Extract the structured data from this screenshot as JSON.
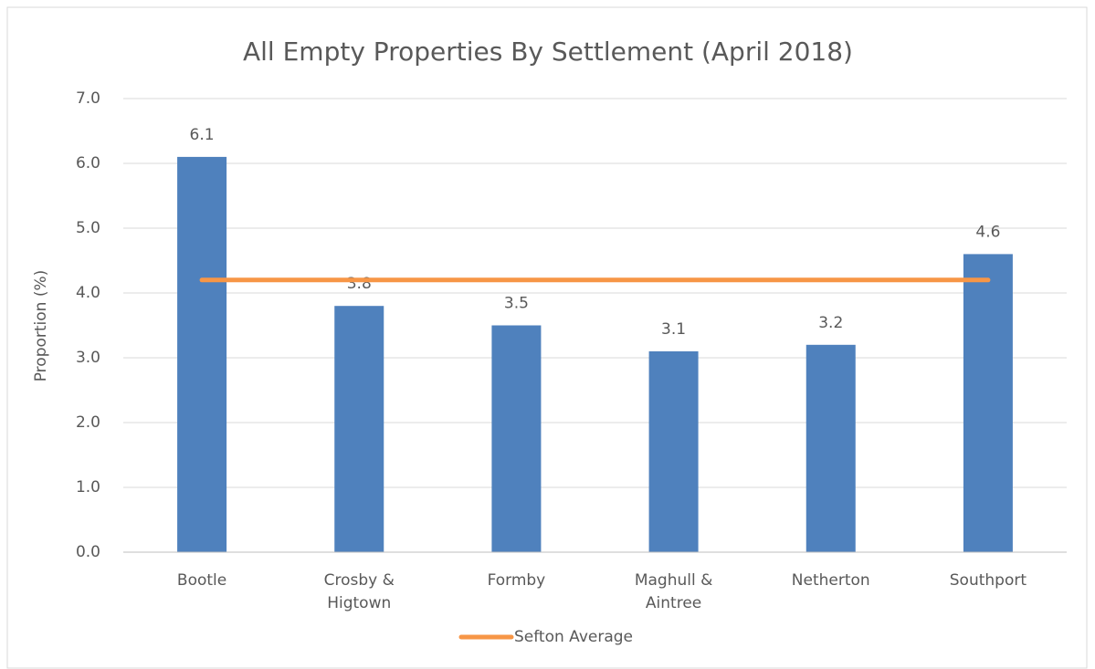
{
  "chart_data": {
    "type": "bar",
    "title": "All Empty Properties By Settlement (April 2018)",
    "y_label": "Proportion (%)",
    "categories": [
      "Bootle",
      "Crosby & Higtown",
      "Formby",
      "Maghull & Aintree",
      "Netherton",
      "Southport"
    ],
    "values": [
      6.1,
      3.8,
      3.5,
      3.1,
      3.2,
      4.6
    ],
    "color": "#4f81bd",
    "series": [
      {
        "name": "Sefton Average",
        "color": "#f79646",
        "type": "line",
        "values": [
          4.2,
          4.2,
          4.2,
          4.2,
          4.2,
          4.2
        ]
      }
    ],
    "ylim": [
      0,
      7
    ],
    "yticks": [
      {
        "value": 0,
        "label": "0.0"
      },
      {
        "value": 1,
        "label": "1.0"
      },
      {
        "value": 2,
        "label": "2.0"
      },
      {
        "value": 3,
        "label": "3.0"
      },
      {
        "value": 4,
        "label": "4.0"
      },
      {
        "value": 5,
        "label": "5.0"
      },
      {
        "value": 6,
        "label": "6.0"
      },
      {
        "value": 7,
        "label": "7.0"
      }
    ],
    "grid": true,
    "legend": "bottom"
  }
}
